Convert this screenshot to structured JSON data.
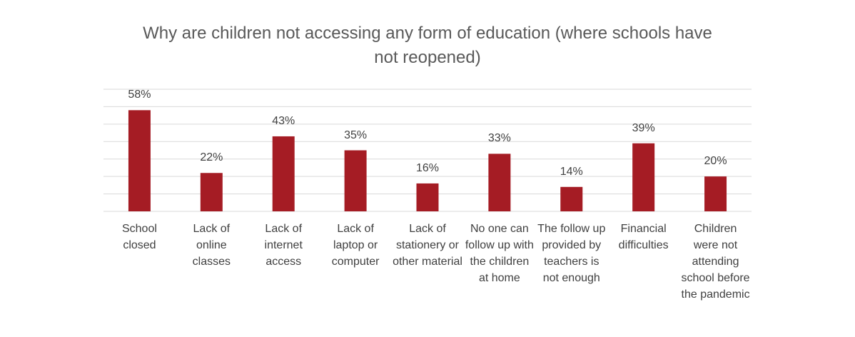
{
  "chart_data": {
    "type": "bar",
    "title": "Why are children not accessing any form of education (where schools have not reopened)",
    "categories": [
      "School closed",
      "Lack of online classes",
      "Lack of internet access",
      "Lack of laptop or computer",
      "Lack of stationery or other material",
      "No one can follow up with the children at home",
      "The follow up provided by teachers is not enough",
      "Financial difficulties",
      "Children were not attending school before the pandemic"
    ],
    "values": [
      58,
      22,
      43,
      35,
      16,
      33,
      14,
      39,
      20
    ],
    "value_labels": [
      "58%",
      "22%",
      "43%",
      "35%",
      "16%",
      "33%",
      "14%",
      "39%",
      "20%"
    ],
    "color": "#a51c24",
    "ylim": [
      0,
      70
    ],
    "yticks": [
      0,
      10,
      20,
      30,
      40,
      50,
      60,
      70
    ],
    "grid": true
  }
}
